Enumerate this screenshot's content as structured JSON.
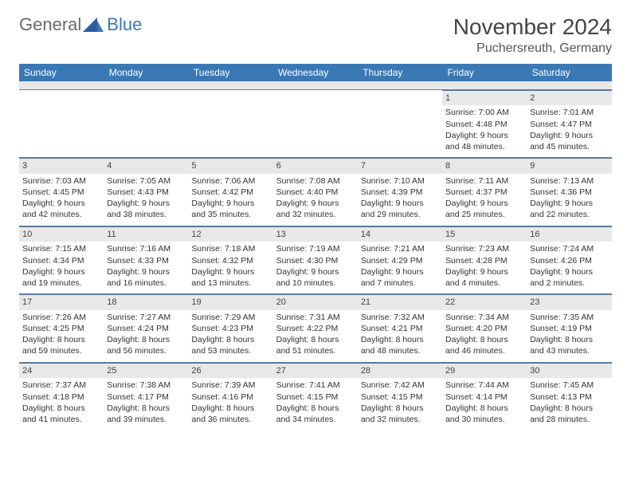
{
  "logo": {
    "text1": "General",
    "text2": "Blue"
  },
  "title": "November 2024",
  "location": "Puchersreuth, Germany",
  "columns": [
    "Sunday",
    "Monday",
    "Tuesday",
    "Wednesday",
    "Thursday",
    "Friday",
    "Saturday"
  ],
  "colors": {
    "header_bg": "#3a78b5",
    "header_text": "#ffffff",
    "daynum_bg": "#e8e8e8",
    "border": "#5a7a99",
    "logo_gray": "#6a6a6a",
    "logo_blue": "#3a78b5"
  },
  "weeks": [
    [
      {
        "n": "",
        "sr": "",
        "ss": "",
        "dl": ""
      },
      {
        "n": "",
        "sr": "",
        "ss": "",
        "dl": ""
      },
      {
        "n": "",
        "sr": "",
        "ss": "",
        "dl": ""
      },
      {
        "n": "",
        "sr": "",
        "ss": "",
        "dl": ""
      },
      {
        "n": "",
        "sr": "",
        "ss": "",
        "dl": ""
      },
      {
        "n": "1",
        "sr": "Sunrise: 7:00 AM",
        "ss": "Sunset: 4:48 PM",
        "dl": "Daylight: 9 hours and 48 minutes."
      },
      {
        "n": "2",
        "sr": "Sunrise: 7:01 AM",
        "ss": "Sunset: 4:47 PM",
        "dl": "Daylight: 9 hours and 45 minutes."
      }
    ],
    [
      {
        "n": "3",
        "sr": "Sunrise: 7:03 AM",
        "ss": "Sunset: 4:45 PM",
        "dl": "Daylight: 9 hours and 42 minutes."
      },
      {
        "n": "4",
        "sr": "Sunrise: 7:05 AM",
        "ss": "Sunset: 4:43 PM",
        "dl": "Daylight: 9 hours and 38 minutes."
      },
      {
        "n": "5",
        "sr": "Sunrise: 7:06 AM",
        "ss": "Sunset: 4:42 PM",
        "dl": "Daylight: 9 hours and 35 minutes."
      },
      {
        "n": "6",
        "sr": "Sunrise: 7:08 AM",
        "ss": "Sunset: 4:40 PM",
        "dl": "Daylight: 9 hours and 32 minutes."
      },
      {
        "n": "7",
        "sr": "Sunrise: 7:10 AM",
        "ss": "Sunset: 4:39 PM",
        "dl": "Daylight: 9 hours and 29 minutes."
      },
      {
        "n": "8",
        "sr": "Sunrise: 7:11 AM",
        "ss": "Sunset: 4:37 PM",
        "dl": "Daylight: 9 hours and 25 minutes."
      },
      {
        "n": "9",
        "sr": "Sunrise: 7:13 AM",
        "ss": "Sunset: 4:36 PM",
        "dl": "Daylight: 9 hours and 22 minutes."
      }
    ],
    [
      {
        "n": "10",
        "sr": "Sunrise: 7:15 AM",
        "ss": "Sunset: 4:34 PM",
        "dl": "Daylight: 9 hours and 19 minutes."
      },
      {
        "n": "11",
        "sr": "Sunrise: 7:16 AM",
        "ss": "Sunset: 4:33 PM",
        "dl": "Daylight: 9 hours and 16 minutes."
      },
      {
        "n": "12",
        "sr": "Sunrise: 7:18 AM",
        "ss": "Sunset: 4:32 PM",
        "dl": "Daylight: 9 hours and 13 minutes."
      },
      {
        "n": "13",
        "sr": "Sunrise: 7:19 AM",
        "ss": "Sunset: 4:30 PM",
        "dl": "Daylight: 9 hours and 10 minutes."
      },
      {
        "n": "14",
        "sr": "Sunrise: 7:21 AM",
        "ss": "Sunset: 4:29 PM",
        "dl": "Daylight: 9 hours and 7 minutes."
      },
      {
        "n": "15",
        "sr": "Sunrise: 7:23 AM",
        "ss": "Sunset: 4:28 PM",
        "dl": "Daylight: 9 hours and 4 minutes."
      },
      {
        "n": "16",
        "sr": "Sunrise: 7:24 AM",
        "ss": "Sunset: 4:26 PM",
        "dl": "Daylight: 9 hours and 2 minutes."
      }
    ],
    [
      {
        "n": "17",
        "sr": "Sunrise: 7:26 AM",
        "ss": "Sunset: 4:25 PM",
        "dl": "Daylight: 8 hours and 59 minutes."
      },
      {
        "n": "18",
        "sr": "Sunrise: 7:27 AM",
        "ss": "Sunset: 4:24 PM",
        "dl": "Daylight: 8 hours and 56 minutes."
      },
      {
        "n": "19",
        "sr": "Sunrise: 7:29 AM",
        "ss": "Sunset: 4:23 PM",
        "dl": "Daylight: 8 hours and 53 minutes."
      },
      {
        "n": "20",
        "sr": "Sunrise: 7:31 AM",
        "ss": "Sunset: 4:22 PM",
        "dl": "Daylight: 8 hours and 51 minutes."
      },
      {
        "n": "21",
        "sr": "Sunrise: 7:32 AM",
        "ss": "Sunset: 4:21 PM",
        "dl": "Daylight: 8 hours and 48 minutes."
      },
      {
        "n": "22",
        "sr": "Sunrise: 7:34 AM",
        "ss": "Sunset: 4:20 PM",
        "dl": "Daylight: 8 hours and 46 minutes."
      },
      {
        "n": "23",
        "sr": "Sunrise: 7:35 AM",
        "ss": "Sunset: 4:19 PM",
        "dl": "Daylight: 8 hours and 43 minutes."
      }
    ],
    [
      {
        "n": "24",
        "sr": "Sunrise: 7:37 AM",
        "ss": "Sunset: 4:18 PM",
        "dl": "Daylight: 8 hours and 41 minutes."
      },
      {
        "n": "25",
        "sr": "Sunrise: 7:38 AM",
        "ss": "Sunset: 4:17 PM",
        "dl": "Daylight: 8 hours and 39 minutes."
      },
      {
        "n": "26",
        "sr": "Sunrise: 7:39 AM",
        "ss": "Sunset: 4:16 PM",
        "dl": "Daylight: 8 hours and 36 minutes."
      },
      {
        "n": "27",
        "sr": "Sunrise: 7:41 AM",
        "ss": "Sunset: 4:15 PM",
        "dl": "Daylight: 8 hours and 34 minutes."
      },
      {
        "n": "28",
        "sr": "Sunrise: 7:42 AM",
        "ss": "Sunset: 4:15 PM",
        "dl": "Daylight: 8 hours and 32 minutes."
      },
      {
        "n": "29",
        "sr": "Sunrise: 7:44 AM",
        "ss": "Sunset: 4:14 PM",
        "dl": "Daylight: 8 hours and 30 minutes."
      },
      {
        "n": "30",
        "sr": "Sunrise: 7:45 AM",
        "ss": "Sunset: 4:13 PM",
        "dl": "Daylight: 8 hours and 28 minutes."
      }
    ]
  ]
}
